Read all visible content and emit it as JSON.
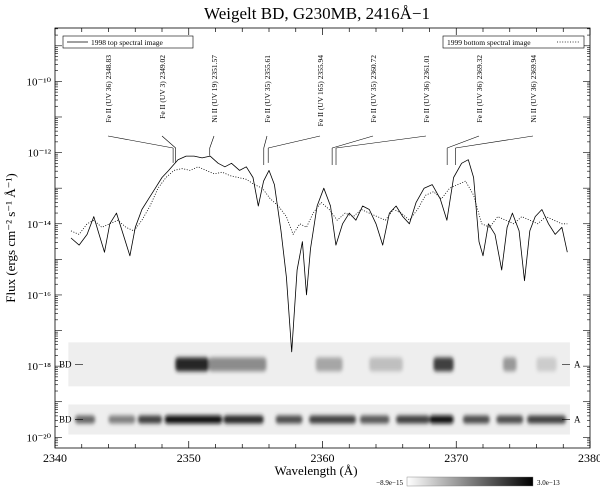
{
  "chart_data": {
    "type": "line",
    "title": "Weigelt BD, G230MB, 2416Å−1",
    "xlabel": "Wavelength (Å)",
    "ylabel": "Flux (ergs cm⁻² s⁻¹ Å⁻¹)",
    "xlim": [
      2340,
      2380
    ],
    "ylim_log10": [
      -20.3,
      -8.5
    ],
    "y_scale": "log",
    "x_ticks": [
      2340,
      2350,
      2360,
      2370,
      2380
    ],
    "x_tick_labels": [
      "2340",
      "2350",
      "2360",
      "2370",
      "2380"
    ],
    "y_ticks_log10": [
      -20,
      -18,
      -16,
      -14,
      -12,
      -10
    ],
    "y_tick_labels": [
      "10⁻²⁰",
      "10⁻¹⁸",
      "10⁻¹⁶",
      "10⁻¹⁴",
      "10⁻¹²",
      "10⁻¹⁰"
    ],
    "legend": {
      "left": {
        "label": "1998 top spectral image",
        "style": "solid",
        "placement": "top-left"
      },
      "right": {
        "label": "1999 bottom spectral image",
        "style": "dotted",
        "placement": "top-right"
      }
    },
    "series": [
      {
        "name": "1998 top spectral image",
        "style": "solid",
        "points": [
          [
            2341.2,
            -14.4
          ],
          [
            2341.8,
            -14.6
          ],
          [
            2342.4,
            -14.3
          ],
          [
            2342.9,
            -13.8
          ],
          [
            2343.3,
            -14.3
          ],
          [
            2343.7,
            -14.8
          ],
          [
            2344.1,
            -14.0
          ],
          [
            2344.6,
            -13.7
          ],
          [
            2345.1,
            -14.3
          ],
          [
            2345.6,
            -14.9
          ],
          [
            2346.0,
            -14.1
          ],
          [
            2346.5,
            -13.6
          ],
          [
            2347.0,
            -13.3
          ],
          [
            2347.5,
            -13.0
          ],
          [
            2348.0,
            -12.7
          ],
          [
            2348.5,
            -12.5
          ],
          [
            2349.2,
            -12.2
          ],
          [
            2349.8,
            -12.1
          ],
          [
            2350.4,
            -12.1
          ],
          [
            2351.0,
            -12.15
          ],
          [
            2351.6,
            -12.1
          ],
          [
            2352.2,
            -12.3
          ],
          [
            2352.7,
            -12.4
          ],
          [
            2353.2,
            -12.3
          ],
          [
            2353.8,
            -12.5
          ],
          [
            2354.3,
            -12.4
          ],
          [
            2354.8,
            -12.7
          ],
          [
            2355.2,
            -13.5
          ],
          [
            2355.6,
            -12.8
          ],
          [
            2356.0,
            -12.5
          ],
          [
            2356.4,
            -12.9
          ],
          [
            2356.9,
            -14.2
          ],
          [
            2357.3,
            -15.5
          ],
          [
            2357.7,
            -17.6
          ],
          [
            2358.1,
            -15.3
          ],
          [
            2358.5,
            -14.5
          ],
          [
            2358.8,
            -16.0
          ],
          [
            2359.1,
            -14.7
          ],
          [
            2359.6,
            -13.5
          ],
          [
            2360.1,
            -13.0
          ],
          [
            2360.6,
            -13.5
          ],
          [
            2361.0,
            -14.6
          ],
          [
            2361.5,
            -14.0
          ],
          [
            2362.0,
            -13.7
          ],
          [
            2362.5,
            -13.9
          ],
          [
            2363.0,
            -13.5
          ],
          [
            2363.5,
            -13.6
          ],
          [
            2364.0,
            -14.0
          ],
          [
            2364.5,
            -14.6
          ],
          [
            2365.0,
            -13.7
          ],
          [
            2365.5,
            -13.5
          ],
          [
            2366.0,
            -13.8
          ],
          [
            2366.5,
            -14.0
          ],
          [
            2367.0,
            -13.4
          ],
          [
            2367.6,
            -13.0
          ],
          [
            2368.2,
            -12.9
          ],
          [
            2368.8,
            -13.3
          ],
          [
            2369.3,
            -13.9
          ],
          [
            2369.8,
            -12.7
          ],
          [
            2370.4,
            -12.3
          ],
          [
            2370.9,
            -12.2
          ],
          [
            2371.3,
            -12.7
          ],
          [
            2371.7,
            -14.5
          ],
          [
            2372.0,
            -14.9
          ],
          [
            2372.4,
            -14.0
          ],
          [
            2372.9,
            -14.3
          ],
          [
            2373.4,
            -15.3
          ],
          [
            2373.8,
            -14.1
          ],
          [
            2374.2,
            -13.7
          ],
          [
            2374.7,
            -14.2
          ],
          [
            2375.1,
            -15.6
          ],
          [
            2375.5,
            -14.2
          ],
          [
            2375.9,
            -13.8
          ],
          [
            2376.4,
            -13.6
          ],
          [
            2376.9,
            -14.0
          ],
          [
            2377.4,
            -14.3
          ],
          [
            2377.9,
            -14.1
          ],
          [
            2378.3,
            -14.8
          ]
        ]
      },
      {
        "name": "1999 bottom spectral image",
        "style": "dotted",
        "points": [
          [
            2341.2,
            -14.2
          ],
          [
            2341.8,
            -14.3
          ],
          [
            2342.4,
            -14.0
          ],
          [
            2342.9,
            -13.9
          ],
          [
            2343.5,
            -14.1
          ],
          [
            2344.1,
            -14.0
          ],
          [
            2344.7,
            -13.9
          ],
          [
            2345.3,
            -14.1
          ],
          [
            2345.9,
            -14.2
          ],
          [
            2346.5,
            -13.9
          ],
          [
            2347.1,
            -13.5
          ],
          [
            2347.7,
            -13.0
          ],
          [
            2348.3,
            -12.7
          ],
          [
            2348.9,
            -12.5
          ],
          [
            2349.5,
            -12.45
          ],
          [
            2350.1,
            -12.5
          ],
          [
            2350.7,
            -12.4
          ],
          [
            2351.3,
            -12.5
          ],
          [
            2351.9,
            -12.6
          ],
          [
            2352.5,
            -12.55
          ],
          [
            2353.1,
            -12.65
          ],
          [
            2353.7,
            -12.7
          ],
          [
            2354.3,
            -12.75
          ],
          [
            2354.9,
            -12.9
          ],
          [
            2355.5,
            -13.0
          ],
          [
            2356.1,
            -13.3
          ],
          [
            2356.7,
            -13.5
          ],
          [
            2357.3,
            -13.8
          ],
          [
            2357.8,
            -14.3
          ],
          [
            2358.3,
            -14.0
          ],
          [
            2358.8,
            -14.1
          ],
          [
            2359.3,
            -13.7
          ],
          [
            2359.9,
            -13.4
          ],
          [
            2360.5,
            -13.6
          ],
          [
            2361.1,
            -13.9
          ],
          [
            2361.7,
            -13.7
          ],
          [
            2362.3,
            -13.8
          ],
          [
            2362.9,
            -13.6
          ],
          [
            2363.5,
            -13.7
          ],
          [
            2364.1,
            -13.8
          ],
          [
            2364.7,
            -13.9
          ],
          [
            2365.3,
            -13.6
          ],
          [
            2365.9,
            -13.7
          ],
          [
            2366.5,
            -13.9
          ],
          [
            2367.1,
            -13.6
          ],
          [
            2367.7,
            -13.2
          ],
          [
            2368.3,
            -13.1
          ],
          [
            2368.9,
            -13.3
          ],
          [
            2369.5,
            -13.0
          ],
          [
            2370.1,
            -12.9
          ],
          [
            2370.7,
            -12.8
          ],
          [
            2371.3,
            -13.2
          ],
          [
            2371.9,
            -14.0
          ],
          [
            2372.5,
            -14.1
          ],
          [
            2373.1,
            -13.8
          ],
          [
            2373.7,
            -13.9
          ],
          [
            2374.3,
            -14.0
          ],
          [
            2374.9,
            -13.8
          ],
          [
            2375.5,
            -13.9
          ],
          [
            2376.1,
            -14.0
          ],
          [
            2376.7,
            -13.8
          ],
          [
            2377.3,
            -13.9
          ],
          [
            2377.9,
            -14.0
          ],
          [
            2378.3,
            -14.0
          ]
        ]
      }
    ],
    "line_ids": [
      {
        "label": "Fe II (UV 36) 2348.83",
        "wavelength": 2348.83,
        "flux_log10": -12.4
      },
      {
        "label": "Fe II (UV 3) 2349.02",
        "wavelength": 2349.02,
        "flux_log10": -12.4
      },
      {
        "label": "Ni II (UV 19) 2351.57",
        "wavelength": 2351.57,
        "flux_log10": -12.2
      },
      {
        "label": "Fe II (UV 35) 2355.61",
        "wavelength": 2355.61,
        "flux_log10": -12.55
      },
      {
        "label": "Fe II (UV 165) 2355.94",
        "wavelength": 2355.94,
        "flux_log10": -12.4
      },
      {
        "label": "Fe II (UV 35) 2360.72",
        "wavelength": 2360.72,
        "flux_log10": -12.65
      },
      {
        "label": "Fe II (UV 36) 2361.01",
        "wavelength": 2361.01,
        "flux_log10": -12.65
      },
      {
        "label": "Fe II (UV 36) 2369.32",
        "wavelength": 2369.32,
        "flux_log10": -12.6
      },
      {
        "label": "Ni II (UV 36) 2369.94",
        "wavelength": 2369.94,
        "flux_log10": -12.6
      }
    ],
    "spectral_image": {
      "type": "heatmap",
      "rows": [
        {
          "left_label": "BD",
          "right_label": "A",
          "center_log10": -17.95
        },
        {
          "left_label": "BD",
          "right_label": "A",
          "center_log10": -19.5
        }
      ],
      "colorbar": {
        "min_label": "−8.9e−15",
        "max_label": "3.0e−13",
        "colors": [
          "#ffffff",
          "#000000"
        ]
      }
    }
  }
}
